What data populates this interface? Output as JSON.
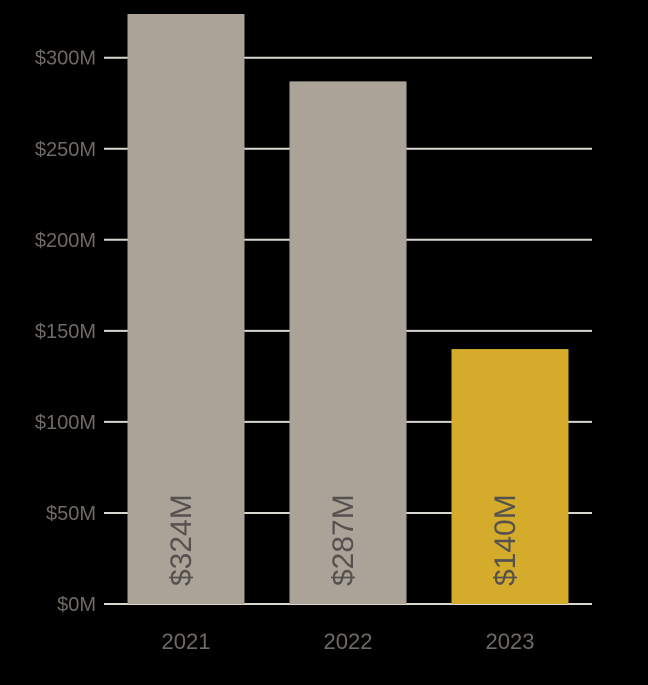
{
  "chart_data": {
    "type": "bar",
    "title": "",
    "xlabel": "",
    "ylabel": "",
    "categories": [
      "2021",
      "2022",
      "2023"
    ],
    "values": [
      324,
      287,
      140
    ],
    "value_labels": [
      "$324M",
      "$287M",
      "$140M"
    ],
    "bar_colors": [
      "#aba398",
      "#aba398",
      "#d4ab2a"
    ],
    "ylim": [
      0,
      324
    ],
    "yticks": [
      0,
      50,
      100,
      150,
      200,
      250,
      300
    ],
    "ytick_labels": [
      "$0M",
      "$50M",
      "$100M",
      "$150M",
      "$200M",
      "$250M",
      "$300M"
    ],
    "grid": true,
    "background": "#000000"
  }
}
